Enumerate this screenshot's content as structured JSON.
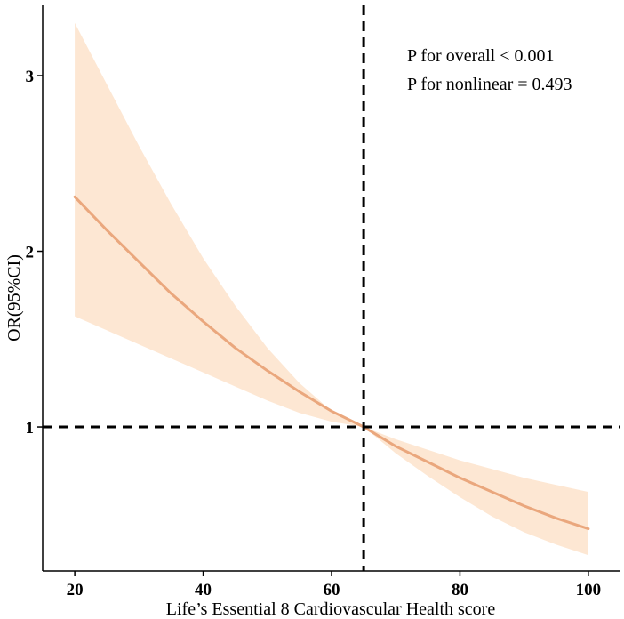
{
  "chart_data": {
    "type": "line",
    "title": "",
    "xlabel": "Life’s Essential 8 Cardiovascular Health score",
    "ylabel": "OR(95%CI)",
    "xlim": [
      15,
      105
    ],
    "ylim": [
      0.18,
      3.4
    ],
    "x_ticks": [
      20,
      40,
      60,
      80,
      100
    ],
    "y_ticks": [
      1,
      2,
      3
    ],
    "reference_lines": {
      "x": 65,
      "y": 1
    },
    "annotations": [
      "P for overall < 0.001",
      "P for nonlinear = 0.493"
    ],
    "series": [
      {
        "name": "OR",
        "x": [
          20,
          25,
          30,
          35,
          40,
          45,
          50,
          55,
          60,
          65,
          70,
          75,
          80,
          85,
          90,
          95,
          100
        ],
        "y": [
          2.31,
          2.12,
          1.94,
          1.76,
          1.6,
          1.45,
          1.32,
          1.2,
          1.09,
          1.0,
          0.89,
          0.8,
          0.71,
          0.63,
          0.55,
          0.48,
          0.42
        ]
      }
    ],
    "ci_band": {
      "x": [
        20,
        25,
        30,
        35,
        40,
        45,
        50,
        55,
        60,
        65,
        70,
        75,
        80,
        85,
        90,
        95,
        100
      ],
      "lower": [
        1.63,
        1.55,
        1.47,
        1.39,
        1.31,
        1.23,
        1.15,
        1.08,
        1.03,
        1.0,
        0.85,
        0.72,
        0.6,
        0.49,
        0.4,
        0.33,
        0.27
      ],
      "upper": [
        3.3,
        2.95,
        2.6,
        2.27,
        1.96,
        1.69,
        1.45,
        1.25,
        1.09,
        1.0,
        0.93,
        0.87,
        0.81,
        0.76,
        0.71,
        0.67,
        0.63
      ]
    },
    "colors": {
      "line": "#eaa77d",
      "band": "#fde7d3",
      "reference": "#000000",
      "axis": "#000000"
    },
    "grid": false
  }
}
